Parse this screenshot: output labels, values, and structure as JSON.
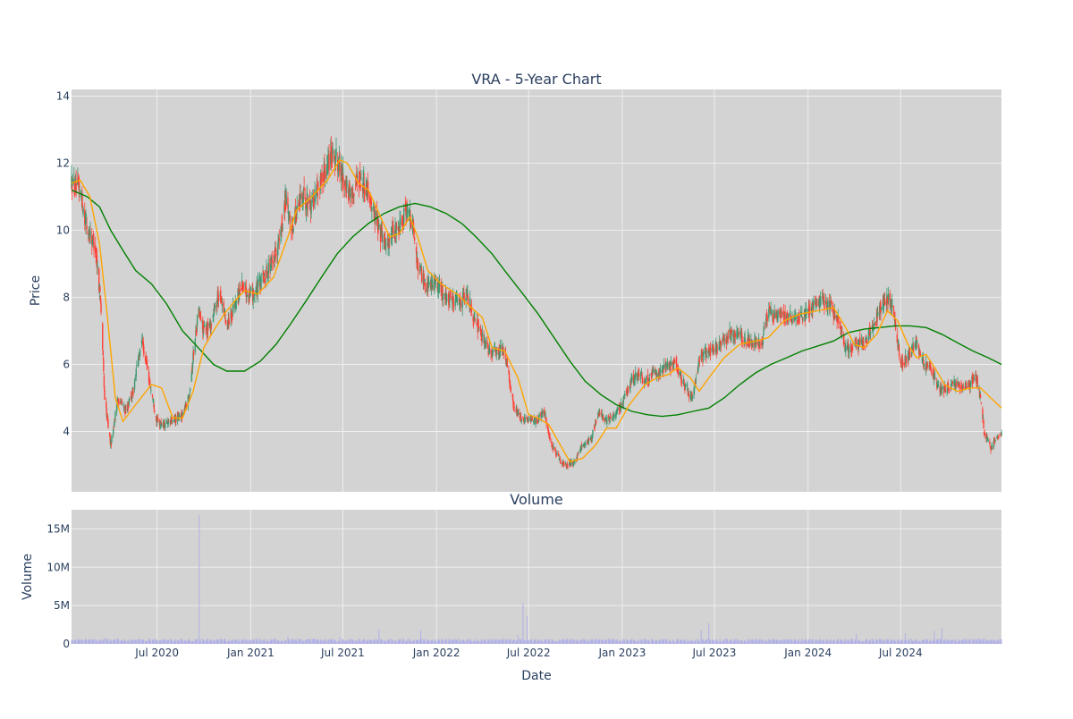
{
  "chart_data": [
    {
      "type": "candlestick",
      "title": "VRA - 5-Year Chart",
      "ylabel": "Price",
      "ylim": [
        2.2,
        14.2
      ],
      "yticks": [
        4,
        6,
        8,
        10,
        12,
        14
      ],
      "xlim": [
        "2020-01-15",
        "2025-01-15"
      ],
      "colors": {
        "up": "#3d9970",
        "down": "#ff4136",
        "ma_short": "#ffa500",
        "ma_long": "#008000",
        "plot_bg": "#d3d3d3",
        "grid": "#eeeeee"
      },
      "price_path": [
        [
          "2020-01-15",
          11.4
        ],
        [
          "2020-02-01",
          11.2
        ],
        [
          "2020-02-15",
          10.0
        ],
        [
          "2020-03-01",
          9.6
        ],
        [
          "2020-03-12",
          8.0
        ],
        [
          "2020-03-20",
          5.0
        ],
        [
          "2020-04-01",
          3.6
        ],
        [
          "2020-04-15",
          5.0
        ],
        [
          "2020-05-01",
          4.6
        ],
        [
          "2020-05-15",
          5.2
        ],
        [
          "2020-06-01",
          6.8
        ],
        [
          "2020-06-15",
          5.6
        ],
        [
          "2020-07-01",
          4.3
        ],
        [
          "2020-07-15",
          4.2
        ],
        [
          "2020-08-01",
          4.3
        ],
        [
          "2020-08-20",
          4.5
        ],
        [
          "2020-09-01",
          5.0
        ],
        [
          "2020-09-20",
          7.6
        ],
        [
          "2020-10-01",
          7.0
        ],
        [
          "2020-10-15",
          7.2
        ],
        [
          "2020-11-01",
          8.2
        ],
        [
          "2020-11-15",
          7.2
        ],
        [
          "2020-12-01",
          7.8
        ],
        [
          "2020-12-15",
          8.4
        ],
        [
          "2021-01-01",
          8.0
        ],
        [
          "2021-01-20",
          8.4
        ],
        [
          "2021-02-10",
          9.0
        ],
        [
          "2021-03-01",
          9.8
        ],
        [
          "2021-03-10",
          11.0
        ],
        [
          "2021-03-20",
          10.0
        ],
        [
          "2021-04-10",
          11.0
        ],
        [
          "2021-05-01",
          10.8
        ],
        [
          "2021-06-01",
          12.0
        ],
        [
          "2021-06-10",
          12.4
        ],
        [
          "2021-07-01",
          11.6
        ],
        [
          "2021-07-15",
          11.0
        ],
        [
          "2021-08-01",
          11.6
        ],
        [
          "2021-08-20",
          11.2
        ],
        [
          "2021-09-10",
          10.0
        ],
        [
          "2021-09-25",
          9.6
        ],
        [
          "2021-10-15",
          10.0
        ],
        [
          "2021-11-01",
          10.6
        ],
        [
          "2021-11-15",
          10.2
        ],
        [
          "2021-11-25",
          9.0
        ],
        [
          "2021-12-10",
          8.4
        ],
        [
          "2022-01-01",
          8.4
        ],
        [
          "2022-01-20",
          8.0
        ],
        [
          "2022-02-15",
          7.8
        ],
        [
          "2022-03-01",
          8.2
        ],
        [
          "2022-03-15",
          7.4
        ],
        [
          "2022-04-01",
          6.8
        ],
        [
          "2022-04-15",
          6.4
        ],
        [
          "2022-05-01",
          6.4
        ],
        [
          "2022-05-15",
          6.4
        ],
        [
          "2022-06-01",
          4.8
        ],
        [
          "2022-06-15",
          4.4
        ],
        [
          "2022-07-01",
          4.3
        ],
        [
          "2022-07-15",
          4.3
        ],
        [
          "2022-08-01",
          4.6
        ],
        [
          "2022-08-15",
          3.6
        ],
        [
          "2022-09-01",
          3.1
        ],
        [
          "2022-09-15",
          3.0
        ],
        [
          "2022-10-01",
          3.1
        ],
        [
          "2022-10-15",
          3.6
        ],
        [
          "2022-11-01",
          3.8
        ],
        [
          "2022-11-15",
          4.6
        ],
        [
          "2022-12-01",
          4.3
        ],
        [
          "2022-12-15",
          4.4
        ],
        [
          "2023-01-01",
          4.8
        ],
        [
          "2023-01-15",
          5.4
        ],
        [
          "2023-02-01",
          5.8
        ],
        [
          "2023-02-15",
          5.5
        ],
        [
          "2023-03-01",
          5.7
        ],
        [
          "2023-04-01",
          5.9
        ],
        [
          "2023-04-15",
          6.1
        ],
        [
          "2023-05-01",
          5.4
        ],
        [
          "2023-05-20",
          5.0
        ],
        [
          "2023-06-01",
          6.2
        ],
        [
          "2023-06-20",
          6.4
        ],
        [
          "2023-07-10",
          6.5
        ],
        [
          "2023-08-01",
          6.9
        ],
        [
          "2023-08-20",
          6.8
        ],
        [
          "2023-09-10",
          6.7
        ],
        [
          "2023-10-01",
          6.6
        ],
        [
          "2023-10-15",
          7.6
        ],
        [
          "2023-11-01",
          7.5
        ],
        [
          "2023-11-20",
          7.4
        ],
        [
          "2023-12-15",
          7.4
        ],
        [
          "2024-01-01",
          7.6
        ],
        [
          "2024-01-20",
          7.9
        ],
        [
          "2024-02-10",
          7.8
        ],
        [
          "2024-03-01",
          7.3
        ],
        [
          "2024-03-15",
          6.4
        ],
        [
          "2024-04-01",
          6.6
        ],
        [
          "2024-04-20",
          6.6
        ],
        [
          "2024-05-15",
          7.4
        ],
        [
          "2024-06-01",
          8.0
        ],
        [
          "2024-06-15",
          7.8
        ],
        [
          "2024-07-01",
          6.0
        ],
        [
          "2024-07-15",
          6.2
        ],
        [
          "2024-08-01",
          6.7
        ],
        [
          "2024-08-15",
          6.0
        ],
        [
          "2024-09-01",
          5.8
        ],
        [
          "2024-09-15",
          5.2
        ],
        [
          "2024-10-01",
          5.3
        ],
        [
          "2024-10-20",
          5.4
        ],
        [
          "2024-11-10",
          5.3
        ],
        [
          "2024-11-25",
          5.7
        ],
        [
          "2024-12-05",
          5.0
        ],
        [
          "2024-12-12",
          4.0
        ],
        [
          "2024-12-25",
          3.5
        ],
        [
          "2025-01-10",
          3.9
        ],
        [
          "2025-01-15",
          3.9
        ]
      ],
      "ma_short": [
        [
          "2020-01-15",
          11.4
        ],
        [
          "2020-02-01",
          11.5
        ],
        [
          "2020-02-20",
          11.0
        ],
        [
          "2020-03-10",
          9.6
        ],
        [
          "2020-03-25",
          7.5
        ],
        [
          "2020-04-10",
          5.0
        ],
        [
          "2020-04-25",
          4.3
        ],
        [
          "2020-05-20",
          4.8
        ],
        [
          "2020-06-20",
          5.4
        ],
        [
          "2020-07-10",
          5.3
        ],
        [
          "2020-08-01",
          4.4
        ],
        [
          "2020-08-20",
          4.4
        ],
        [
          "2020-09-10",
          5.2
        ],
        [
          "2020-10-01",
          6.5
        ],
        [
          "2020-10-20",
          7.0
        ],
        [
          "2020-11-10",
          7.5
        ],
        [
          "2020-12-01",
          7.9
        ],
        [
          "2020-12-20",
          8.2
        ],
        [
          "2021-01-15",
          8.1
        ],
        [
          "2021-02-15",
          8.6
        ],
        [
          "2021-03-15",
          9.8
        ],
        [
          "2021-04-01",
          10.6
        ],
        [
          "2021-05-01",
          11.0
        ],
        [
          "2021-06-01",
          11.5
        ],
        [
          "2021-06-25",
          12.1
        ],
        [
          "2021-07-10",
          12.0
        ],
        [
          "2021-08-01",
          11.4
        ],
        [
          "2021-08-20",
          11.2
        ],
        [
          "2021-09-10",
          10.5
        ],
        [
          "2021-10-01",
          9.8
        ],
        [
          "2021-10-20",
          9.9
        ],
        [
          "2021-11-10",
          10.4
        ],
        [
          "2021-11-25",
          9.8
        ],
        [
          "2021-12-15",
          8.8
        ],
        [
          "2022-01-10",
          8.4
        ],
        [
          "2022-02-10",
          8.1
        ],
        [
          "2022-03-10",
          7.7
        ],
        [
          "2022-04-01",
          7.4
        ],
        [
          "2022-04-20",
          6.5
        ],
        [
          "2022-05-15",
          6.4
        ],
        [
          "2022-06-10",
          5.6
        ],
        [
          "2022-07-01",
          4.5
        ],
        [
          "2022-07-20",
          4.4
        ],
        [
          "2022-08-10",
          4.2
        ],
        [
          "2022-09-01",
          3.6
        ],
        [
          "2022-09-20",
          3.1
        ],
        [
          "2022-10-15",
          3.2
        ],
        [
          "2022-11-10",
          3.6
        ],
        [
          "2022-12-01",
          4.1
        ],
        [
          "2022-12-20",
          4.1
        ],
        [
          "2023-01-15",
          4.8
        ],
        [
          "2023-02-15",
          5.4
        ],
        [
          "2023-03-10",
          5.6
        ],
        [
          "2023-04-01",
          5.7
        ],
        [
          "2023-04-20",
          5.9
        ],
        [
          "2023-05-15",
          5.6
        ],
        [
          "2023-06-01",
          5.2
        ],
        [
          "2023-06-20",
          5.6
        ],
        [
          "2023-07-20",
          6.2
        ],
        [
          "2023-08-20",
          6.6
        ],
        [
          "2023-09-20",
          6.7
        ],
        [
          "2023-10-15",
          6.8
        ],
        [
          "2023-11-15",
          7.3
        ],
        [
          "2023-12-15",
          7.5
        ],
        [
          "2024-01-20",
          7.6
        ],
        [
          "2024-02-20",
          7.7
        ],
        [
          "2024-03-15",
          7.1
        ],
        [
          "2024-04-01",
          6.6
        ],
        [
          "2024-04-20",
          6.5
        ],
        [
          "2024-05-15",
          6.9
        ],
        [
          "2024-06-05",
          7.6
        ],
        [
          "2024-06-25",
          7.3
        ],
        [
          "2024-07-15",
          6.6
        ],
        [
          "2024-08-01",
          6.2
        ],
        [
          "2024-08-20",
          6.3
        ],
        [
          "2024-09-10",
          5.8
        ],
        [
          "2024-09-25",
          5.4
        ],
        [
          "2024-10-20",
          5.2
        ],
        [
          "2024-11-15",
          5.3
        ],
        [
          "2024-12-05",
          5.3
        ],
        [
          "2024-12-25",
          5.0
        ],
        [
          "2025-01-15",
          4.7
        ]
      ],
      "ma_long": [
        [
          "2020-01-15",
          11.2
        ],
        [
          "2020-02-15",
          11.0
        ],
        [
          "2020-03-10",
          10.7
        ],
        [
          "2020-04-01",
          10.0
        ],
        [
          "2020-04-25",
          9.4
        ],
        [
          "2020-05-20",
          8.8
        ],
        [
          "2020-06-20",
          8.4
        ],
        [
          "2020-07-20",
          7.8
        ],
        [
          "2020-08-20",
          7.0
        ],
        [
          "2020-09-20",
          6.5
        ],
        [
          "2020-10-20",
          6.0
        ],
        [
          "2020-11-15",
          5.8
        ],
        [
          "2020-12-20",
          5.8
        ],
        [
          "2021-01-20",
          6.1
        ],
        [
          "2021-02-20",
          6.6
        ],
        [
          "2021-03-20",
          7.2
        ],
        [
          "2021-04-20",
          7.9
        ],
        [
          "2021-05-20",
          8.6
        ],
        [
          "2021-06-20",
          9.3
        ],
        [
          "2021-07-20",
          9.8
        ],
        [
          "2021-08-20",
          10.2
        ],
        [
          "2021-09-20",
          10.5
        ],
        [
          "2021-10-20",
          10.7
        ],
        [
          "2021-11-20",
          10.8
        ],
        [
          "2021-12-20",
          10.7
        ],
        [
          "2022-01-20",
          10.5
        ],
        [
          "2022-02-20",
          10.2
        ],
        [
          "2022-03-20",
          9.8
        ],
        [
          "2022-04-20",
          9.3
        ],
        [
          "2022-05-20",
          8.7
        ],
        [
          "2022-06-20",
          8.1
        ],
        [
          "2022-07-20",
          7.5
        ],
        [
          "2022-08-20",
          6.8
        ],
        [
          "2022-09-20",
          6.1
        ],
        [
          "2022-10-20",
          5.5
        ],
        [
          "2022-11-20",
          5.1
        ],
        [
          "2022-12-20",
          4.8
        ],
        [
          "2023-01-20",
          4.6
        ],
        [
          "2023-02-20",
          4.5
        ],
        [
          "2023-03-20",
          4.45
        ],
        [
          "2023-04-20",
          4.5
        ],
        [
          "2023-05-20",
          4.6
        ],
        [
          "2023-06-20",
          4.7
        ],
        [
          "2023-07-20",
          5.0
        ],
        [
          "2023-08-20",
          5.4
        ],
        [
          "2023-09-20",
          5.75
        ],
        [
          "2023-10-20",
          6.0
        ],
        [
          "2023-11-20",
          6.2
        ],
        [
          "2023-12-20",
          6.4
        ],
        [
          "2024-01-20",
          6.55
        ],
        [
          "2024-02-20",
          6.7
        ],
        [
          "2024-03-20",
          6.95
        ],
        [
          "2024-04-20",
          7.05
        ],
        [
          "2024-05-20",
          7.1
        ],
        [
          "2024-06-20",
          7.15
        ],
        [
          "2024-07-20",
          7.15
        ],
        [
          "2024-08-20",
          7.1
        ],
        [
          "2024-09-20",
          6.9
        ],
        [
          "2024-10-20",
          6.65
        ],
        [
          "2024-11-20",
          6.4
        ],
        [
          "2024-12-20",
          6.2
        ],
        [
          "2025-01-15",
          6.0
        ]
      ]
    },
    {
      "type": "bar",
      "title": "Volume",
      "xlabel": "Date",
      "ylabel": "Volume",
      "ylim": [
        0,
        17500000
      ],
      "yticks": [
        0,
        5000000,
        10000000,
        15000000
      ],
      "ytick_labels": [
        "0",
        "5M",
        "10M",
        "15M"
      ],
      "xticks": [
        "2020-07-01",
        "2021-01-01",
        "2021-07-01",
        "2022-01-01",
        "2022-07-01",
        "2023-01-01",
        "2023-07-01",
        "2024-01-01",
        "2024-07-01"
      ],
      "xtick_labels": [
        "Jul 2020",
        "Jan 2021",
        "Jul 2021",
        "Jan 2022",
        "Jul 2022",
        "Jan 2023",
        "Jul 2023",
        "Jan 2024",
        "Jul 2024"
      ],
      "color": "#b0b0e8",
      "baseline": 450000,
      "spikes": [
        [
          "2020-03-20",
          800000
        ],
        [
          "2020-05-10",
          700000
        ],
        [
          "2020-09-22",
          16800000
        ],
        [
          "2020-09-27",
          1400000
        ],
        [
          "2020-12-05",
          1800000
        ],
        [
          "2021-03-15",
          900000
        ],
        [
          "2021-06-25",
          900000
        ],
        [
          "2021-09-10",
          1900000
        ],
        [
          "2021-12-01",
          1800000
        ],
        [
          "2022-06-10",
          1200000
        ],
        [
          "2022-06-20",
          5300000
        ],
        [
          "2022-06-28",
          3600000
        ],
        [
          "2022-09-15",
          700000
        ],
        [
          "2023-06-05",
          1800000
        ],
        [
          "2023-06-20",
          2700000
        ],
        [
          "2023-09-10",
          800000
        ],
        [
          "2024-04-05",
          1300000
        ],
        [
          "2024-07-10",
          1400000
        ],
        [
          "2024-09-05",
          1700000
        ],
        [
          "2024-09-20",
          2100000
        ],
        [
          "2024-10-05",
          900000
        ],
        [
          "2024-12-12",
          800000
        ]
      ]
    }
  ]
}
